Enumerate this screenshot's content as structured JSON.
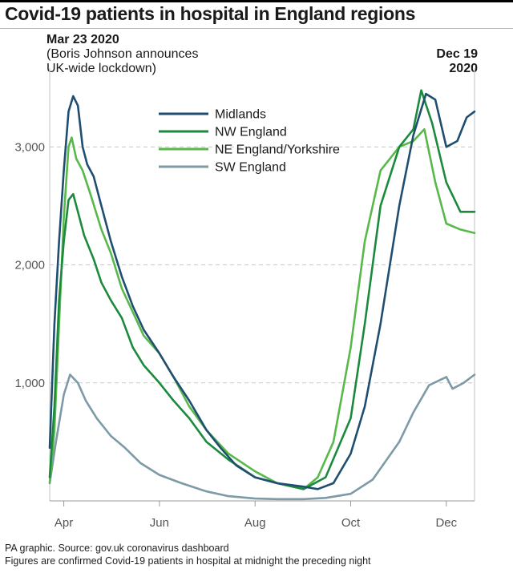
{
  "title": "Covid-19 patients in hospital in England regions",
  "annotation_left": {
    "date": "Mar 23 2020",
    "line1": "(Boris Johnson announces",
    "line2": "UK-wide lockdown)"
  },
  "annotation_right": {
    "line1": "Dec 19",
    "line2": "2020"
  },
  "footer": {
    "source": "PA graphic. Source: gov.uk coronavirus dashboard",
    "note": "Figures are confirmed Covid-19 patients in hospital at midnight the preceding night"
  },
  "colors": {
    "midlands": "#1f4e70",
    "nw": "#1b8a3c",
    "ne": "#58b84a",
    "sw": "#7d9aa6",
    "grid": "#c8c8c8",
    "marker": "#cccccc"
  },
  "chart_data": {
    "type": "line",
    "title": "Covid-19 patients in hospital in England regions",
    "x_ticks": [
      "Apr",
      "Jun",
      "Aug",
      "Oct",
      "Dec"
    ],
    "x_tick_values": [
      "2020-04-01",
      "2020-06-01",
      "2020-08-01",
      "2020-10-01",
      "2020-12-01"
    ],
    "x_range": [
      "2020-03-23",
      "2020-12-19"
    ],
    "y_ticks": [
      1000,
      2000,
      3000
    ],
    "y_tick_labels": [
      "1,000",
      "2,000",
      "3,000"
    ],
    "ylim": [
      0,
      3600
    ],
    "grid": "horizontal dashed",
    "legend_position": "top-center",
    "series": [
      {
        "name": "Midlands",
        "color": "#1f4e70",
        "points": [
          [
            "2020-03-23",
            450
          ],
          [
            "2020-03-26",
            1500
          ],
          [
            "2020-03-29",
            2200
          ],
          [
            "2020-04-01",
            2800
          ],
          [
            "2020-04-04",
            3300
          ],
          [
            "2020-04-07",
            3430
          ],
          [
            "2020-04-10",
            3350
          ],
          [
            "2020-04-13",
            3000
          ],
          [
            "2020-04-16",
            2850
          ],
          [
            "2020-04-20",
            2750
          ],
          [
            "2020-04-25",
            2500
          ],
          [
            "2020-05-01",
            2200
          ],
          [
            "2020-05-08",
            1900
          ],
          [
            "2020-05-15",
            1650
          ],
          [
            "2020-05-22",
            1450
          ],
          [
            "2020-06-01",
            1250
          ],
          [
            "2020-06-10",
            1050
          ],
          [
            "2020-06-20",
            850
          ],
          [
            "2020-07-01",
            600
          ],
          [
            "2020-07-10",
            450
          ],
          [
            "2020-07-20",
            300
          ],
          [
            "2020-08-01",
            200
          ],
          [
            "2020-08-15",
            150
          ],
          [
            "2020-09-01",
            120
          ],
          [
            "2020-09-10",
            100
          ],
          [
            "2020-09-20",
            150
          ],
          [
            "2020-10-01",
            400
          ],
          [
            "2020-10-10",
            800
          ],
          [
            "2020-10-20",
            1500
          ],
          [
            "2020-11-01",
            2500
          ],
          [
            "2020-11-10",
            3100
          ],
          [
            "2020-11-18",
            3450
          ],
          [
            "2020-11-24",
            3400
          ],
          [
            "2020-12-01",
            3000
          ],
          [
            "2020-12-08",
            3050
          ],
          [
            "2020-12-14",
            3250
          ],
          [
            "2020-12-19",
            3300
          ]
        ]
      },
      {
        "name": "NW England",
        "color": "#1b8a3c",
        "points": [
          [
            "2020-03-23",
            200
          ],
          [
            "2020-03-26",
            800
          ],
          [
            "2020-03-29",
            1700
          ],
          [
            "2020-04-01",
            2200
          ],
          [
            "2020-04-04",
            2550
          ],
          [
            "2020-04-07",
            2600
          ],
          [
            "2020-04-10",
            2450
          ],
          [
            "2020-04-14",
            2250
          ],
          [
            "2020-04-20",
            2050
          ],
          [
            "2020-04-25",
            1850
          ],
          [
            "2020-05-01",
            1700
          ],
          [
            "2020-05-08",
            1550
          ],
          [
            "2020-05-15",
            1300
          ],
          [
            "2020-05-22",
            1150
          ],
          [
            "2020-06-01",
            1000
          ],
          [
            "2020-06-10",
            850
          ],
          [
            "2020-06-20",
            700
          ],
          [
            "2020-07-01",
            500
          ],
          [
            "2020-07-15",
            350
          ],
          [
            "2020-08-01",
            200
          ],
          [
            "2020-08-15",
            150
          ],
          [
            "2020-09-01",
            100
          ],
          [
            "2020-09-15",
            200
          ],
          [
            "2020-10-01",
            700
          ],
          [
            "2020-10-10",
            1500
          ],
          [
            "2020-10-20",
            2500
          ],
          [
            "2020-11-01",
            3000
          ],
          [
            "2020-11-10",
            3150
          ],
          [
            "2020-11-15",
            3480
          ],
          [
            "2020-11-22",
            3200
          ],
          [
            "2020-12-01",
            2700
          ],
          [
            "2020-12-10",
            2450
          ],
          [
            "2020-12-19",
            2450
          ]
        ]
      },
      {
        "name": "NE England/Yorkshire",
        "color": "#58b84a",
        "points": [
          [
            "2020-03-23",
            150
          ],
          [
            "2020-03-26",
            600
          ],
          [
            "2020-03-29",
            1500
          ],
          [
            "2020-04-01",
            2400
          ],
          [
            "2020-04-04",
            3000
          ],
          [
            "2020-04-06",
            3080
          ],
          [
            "2020-04-09",
            2900
          ],
          [
            "2020-04-13",
            2800
          ],
          [
            "2020-04-18",
            2600
          ],
          [
            "2020-04-25",
            2300
          ],
          [
            "2020-05-01",
            2100
          ],
          [
            "2020-05-08",
            1800
          ],
          [
            "2020-05-15",
            1600
          ],
          [
            "2020-05-22",
            1400
          ],
          [
            "2020-06-01",
            1250
          ],
          [
            "2020-06-10",
            1050
          ],
          [
            "2020-06-20",
            800
          ],
          [
            "2020-07-01",
            600
          ],
          [
            "2020-07-15",
            400
          ],
          [
            "2020-08-01",
            250
          ],
          [
            "2020-08-15",
            150
          ],
          [
            "2020-09-01",
            100
          ],
          [
            "2020-09-10",
            200
          ],
          [
            "2020-09-20",
            500
          ],
          [
            "2020-10-01",
            1300
          ],
          [
            "2020-10-10",
            2200
          ],
          [
            "2020-10-20",
            2800
          ],
          [
            "2020-11-01",
            3000
          ],
          [
            "2020-11-10",
            3050
          ],
          [
            "2020-11-17",
            3150
          ],
          [
            "2020-11-24",
            2700
          ],
          [
            "2020-12-01",
            2350
          ],
          [
            "2020-12-10",
            2300
          ],
          [
            "2020-12-19",
            2270
          ]
        ]
      },
      {
        "name": "SW England",
        "color": "#7d9aa6",
        "points": [
          [
            "2020-03-23",
            150
          ],
          [
            "2020-03-27",
            500
          ],
          [
            "2020-04-01",
            900
          ],
          [
            "2020-04-05",
            1070
          ],
          [
            "2020-04-10",
            1000
          ],
          [
            "2020-04-15",
            850
          ],
          [
            "2020-04-22",
            700
          ],
          [
            "2020-05-01",
            550
          ],
          [
            "2020-05-10",
            450
          ],
          [
            "2020-05-20",
            320
          ],
          [
            "2020-06-01",
            220
          ],
          [
            "2020-06-15",
            150
          ],
          [
            "2020-07-01",
            80
          ],
          [
            "2020-07-15",
            40
          ],
          [
            "2020-08-01",
            20
          ],
          [
            "2020-08-15",
            15
          ],
          [
            "2020-09-01",
            15
          ],
          [
            "2020-09-15",
            25
          ],
          [
            "2020-10-01",
            60
          ],
          [
            "2020-10-15",
            180
          ],
          [
            "2020-11-01",
            500
          ],
          [
            "2020-11-10",
            750
          ],
          [
            "2020-11-20",
            980
          ],
          [
            "2020-12-01",
            1050
          ],
          [
            "2020-12-05",
            950
          ],
          [
            "2020-12-12",
            1000
          ],
          [
            "2020-12-19",
            1070
          ]
        ]
      }
    ]
  }
}
